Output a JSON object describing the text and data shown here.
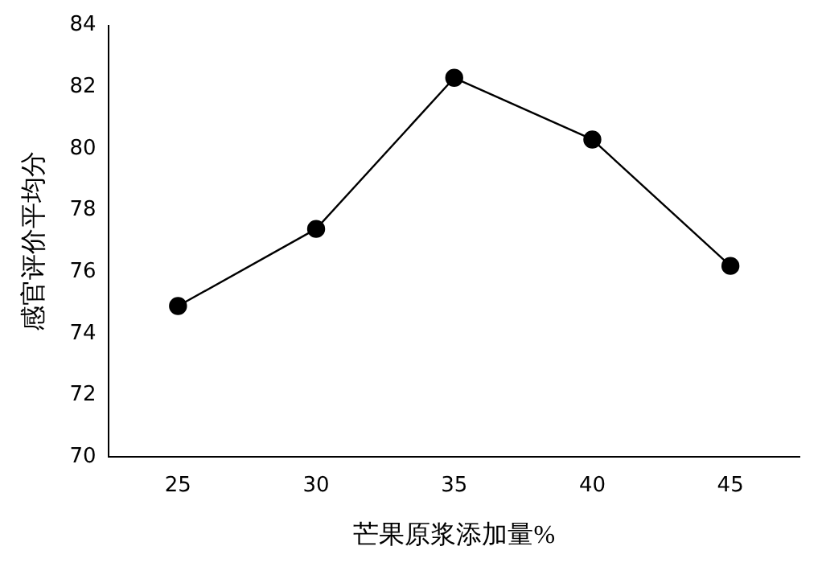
{
  "chart_data": {
    "type": "line",
    "xlabel": "芒果原浆添加量%",
    "ylabel": "感官评价平均分",
    "categories": [
      "25",
      "30",
      "35",
      "40",
      "45"
    ],
    "series": [
      {
        "color": "#000000",
        "values": [
          74.9,
          77.4,
          82.3,
          80.3,
          76.2
        ]
      }
    ],
    "ylim": [
      70,
      84
    ],
    "yticks": [
      70,
      72,
      74,
      76,
      78,
      80,
      82,
      84
    ],
    "grid": false,
    "legend": false,
    "marker": "circle",
    "line_style": "solid"
  }
}
